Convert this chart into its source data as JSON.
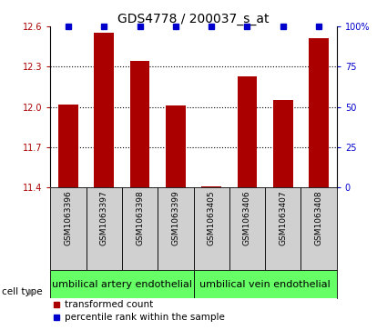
{
  "title": "GDS4778 / 200037_s_at",
  "samples": [
    "GSM1063396",
    "GSM1063397",
    "GSM1063398",
    "GSM1063399",
    "GSM1063405",
    "GSM1063406",
    "GSM1063407",
    "GSM1063408"
  ],
  "red_values": [
    12.02,
    12.55,
    12.34,
    12.01,
    11.41,
    12.23,
    12.05,
    12.51
  ],
  "blue_percentiles": [
    100,
    100,
    100,
    100,
    97,
    100,
    100,
    100
  ],
  "ylim_left": [
    11.4,
    12.6
  ],
  "ylim_right": [
    0,
    100
  ],
  "yticks_left": [
    11.4,
    11.7,
    12.0,
    12.3,
    12.6
  ],
  "yticks_right": [
    0,
    25,
    50,
    75,
    100
  ],
  "ytick_right_labels": [
    "0",
    "25",
    "50",
    "75",
    "100%"
  ],
  "red_color": "#AA0000",
  "blue_color": "#0000CC",
  "bar_width": 0.55,
  "group1_label": "umbilical artery endothelial",
  "group1_samples": [
    0,
    1,
    2,
    3
  ],
  "group2_label": "umbilical vein endothelial",
  "group2_samples": [
    4,
    5,
    6,
    7
  ],
  "group_color": "#66FF66",
  "sample_box_color": "#D0D0D0",
  "cell_type_label": "cell type",
  "legend_red_label": "transformed count",
  "legend_blue_label": "percentile rank within the sample",
  "title_fontsize": 10,
  "tick_fontsize": 7,
  "sample_fontsize": 6.5,
  "group_fontsize": 8,
  "legend_fontsize": 7.5
}
